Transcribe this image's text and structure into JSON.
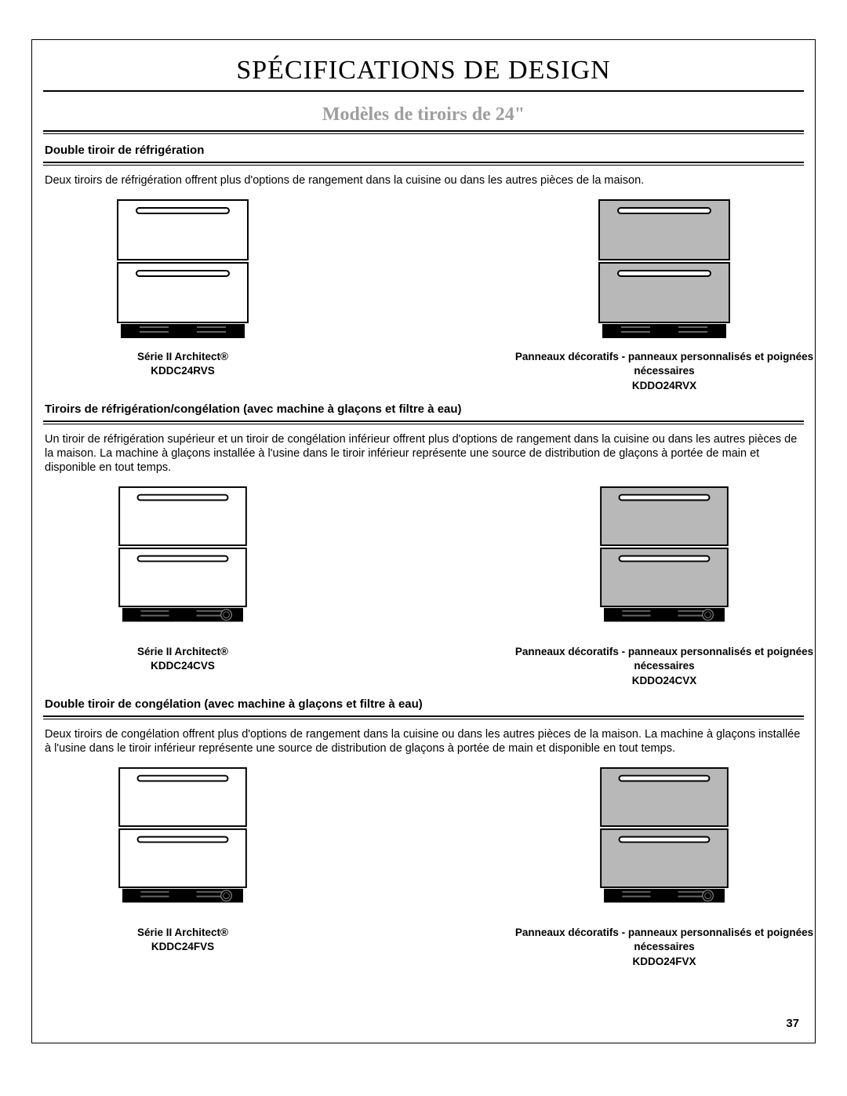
{
  "title": "SPÉCIFICATIONS DE DESIGN",
  "subtitle": "Modèles de tiroirs de 24\"",
  "pageNumber": "37",
  "colors": {
    "black": "#000000",
    "white": "#ffffff",
    "panelGrey": "#b8b8b8",
    "greyText": "#9e9e9e"
  },
  "sections": [
    {
      "heading": "Double tiroir de réfrigération",
      "paragraph": "Deux tiroirs de réfrigération offrent plus d'options de rangement dans la cuisine ou dans les autres pièces de la maison.",
      "showVent": false,
      "left": {
        "captionTop": "Série II Architect®",
        "captionBottom": "KDDC24RVS",
        "panelColor": "#ffffff"
      },
      "right": {
        "captionTop": "Panneaux décoratifs - panneaux personnalisés et poignées nécessaires",
        "captionBottom": "KDDO24RVX",
        "panelColor": "#b8b8b8"
      }
    },
    {
      "heading": "Tiroirs de réfrigération/congélation (avec machine à glaçons et filtre à eau)",
      "paragraph": "Un tiroir de réfrigération supérieur et un tiroir de congélation inférieur offrent plus d'options de rangement dans la cuisine ou dans les autres pièces de la maison. La machine à glaçons installée à l'usine dans le tiroir inférieur représente une source de distribution de glaçons à portée de main et disponible en tout temps.",
      "showVent": true,
      "left": {
        "captionTop": "Série II Architect®",
        "captionBottom": "KDDC24CVS",
        "panelColor": "#ffffff"
      },
      "right": {
        "captionTop": "Panneaux décoratifs - panneaux personnalisés et poignées nécessaires",
        "captionBottom": "KDDO24CVX",
        "panelColor": "#b8b8b8"
      }
    },
    {
      "heading": "Double tiroir de congélation (avec machine à glaçons et filtre à eau)",
      "paragraph": "Deux tiroirs de congélation offrent plus d'options de rangement dans la cuisine ou dans les autres pièces de la maison. La machine à glaçons installée à l'usine dans le tiroir inférieur représente une source de distribution de glaçons à portée de main et disponible en tout temps.",
      "showVent": true,
      "left": {
        "captionTop": "Série II Architect®",
        "captionBottom": "KDDC24FVS",
        "panelColor": "#ffffff"
      },
      "right": {
        "captionTop": "Panneaux décoratifs - panneaux personnalisés et poignées nécessaires",
        "captionBottom": "KDDO24FVX",
        "panelColor": "#b8b8b8"
      }
    }
  ]
}
